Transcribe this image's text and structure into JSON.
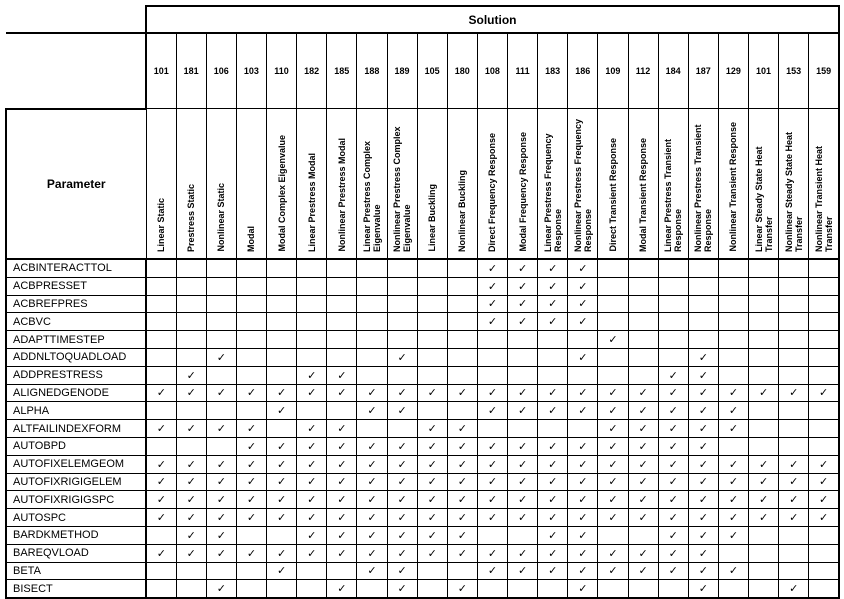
{
  "header": {
    "solution_label": "Solution",
    "parameter_label": "Parameter"
  },
  "solutions": [
    {
      "number": "101",
      "name": "Linear Static"
    },
    {
      "number": "181",
      "name": "Prestress Static"
    },
    {
      "number": "106",
      "name": "Nonlinear Static"
    },
    {
      "number": "103",
      "name": "Modal"
    },
    {
      "number": "110",
      "name": "Modal Complex Eigenvalue"
    },
    {
      "number": "182",
      "name": "Linear Prestress Modal"
    },
    {
      "number": "185",
      "name": "Nonlinear Prestress Modal"
    },
    {
      "number": "188",
      "name": "Linear Prestress Complex Eigenvalue"
    },
    {
      "number": "189",
      "name": "Nonlinear Prestress Complex Eigenvalue"
    },
    {
      "number": "105",
      "name": "Linear Buckling"
    },
    {
      "number": "180",
      "name": "Nonlinear Buckling"
    },
    {
      "number": "108",
      "name": "Direct Frequency Response"
    },
    {
      "number": "111",
      "name": "Modal Frequency Response"
    },
    {
      "number": "183",
      "name": "Linear Prestress Frequency Response"
    },
    {
      "number": "186",
      "name": "Nonlinear Prestress Frequency Response"
    },
    {
      "number": "109",
      "name": "Direct Transient Response"
    },
    {
      "number": "112",
      "name": "Modal Transient Response"
    },
    {
      "number": "184",
      "name": "Linear Prestress Transient Response"
    },
    {
      "number": "187",
      "name": "Nonlinear Prestress Transient Response"
    },
    {
      "number": "129",
      "name": "Nonlinear Transient Response"
    },
    {
      "number": "101",
      "name": "Linear Steady State Heat Transfer"
    },
    {
      "number": "153",
      "name": "Nonlinear Steady State Heat Transfer"
    },
    {
      "number": "159",
      "name": "Nonlinear Transient Heat Transfer"
    }
  ],
  "rows": [
    {
      "parameter": "ACBINTERACTTOL",
      "cells": [
        "",
        "",
        "",
        "",
        "",
        "",
        "",
        "",
        "",
        "",
        "",
        "✓",
        "✓",
        "✓",
        "✓",
        "",
        "",
        "",
        "",
        "",
        "",
        "",
        ""
      ]
    },
    {
      "parameter": "ACBPRESSET",
      "cells": [
        "",
        "",
        "",
        "",
        "",
        "",
        "",
        "",
        "",
        "",
        "",
        "✓",
        "✓",
        "✓",
        "✓",
        "",
        "",
        "",
        "",
        "",
        "",
        "",
        ""
      ]
    },
    {
      "parameter": "ACBREFPRES",
      "cells": [
        "",
        "",
        "",
        "",
        "",
        "",
        "",
        "",
        "",
        "",
        "",
        "✓",
        "✓",
        "✓",
        "✓",
        "",
        "",
        "",
        "",
        "",
        "",
        "",
        ""
      ]
    },
    {
      "parameter": "ACBVC",
      "cells": [
        "",
        "",
        "",
        "",
        "",
        "",
        "",
        "",
        "",
        "",
        "",
        "✓",
        "✓",
        "✓",
        "✓",
        "",
        "",
        "",
        "",
        "",
        "",
        "",
        ""
      ]
    },
    {
      "parameter": "ADAPTTIMESTEP",
      "cells": [
        "",
        "",
        "",
        "",
        "",
        "",
        "",
        "",
        "",
        "",
        "",
        "",
        "",
        "",
        "",
        "✓",
        "",
        "",
        "",
        "",
        "",
        "",
        ""
      ]
    },
    {
      "parameter": "ADDNLTOQUADLOAD",
      "cells": [
        "",
        "",
        "✓",
        "",
        "",
        "",
        "",
        "",
        "✓",
        "",
        "",
        "",
        "",
        "",
        "✓",
        "",
        "",
        "",
        "✓",
        "",
        "",
        "",
        ""
      ]
    },
    {
      "parameter": "ADDPRESTRESS",
      "cells": [
        "",
        "✓",
        "",
        "",
        "",
        "✓",
        "✓",
        "",
        "",
        "",
        "",
        "",
        "",
        "",
        "",
        "",
        "",
        "✓",
        "✓",
        "",
        "",
        "",
        ""
      ]
    },
    {
      "parameter": "ALIGNEDGENODE",
      "cells": [
        "✓",
        "✓",
        "✓",
        "✓",
        "✓",
        "✓",
        "✓",
        "✓",
        "✓",
        "✓",
        "✓",
        "✓",
        "✓",
        "✓",
        "✓",
        "✓",
        "✓",
        "✓",
        "✓",
        "✓",
        "✓",
        "✓",
        "✓"
      ]
    },
    {
      "parameter": "ALPHA",
      "cells": [
        "",
        "",
        "",
        "",
        "✓",
        "",
        "",
        "✓",
        "✓",
        "",
        "",
        "✓",
        "✓",
        "✓",
        "✓",
        "✓",
        "✓",
        "✓",
        "✓",
        "✓",
        "",
        "",
        ""
      ]
    },
    {
      "parameter": "ALTFAILINDEXFORM",
      "cells": [
        "✓",
        "✓",
        "✓",
        "✓",
        "",
        "✓",
        "✓",
        "",
        "",
        "✓",
        "✓",
        "",
        "",
        "",
        "",
        "✓",
        "✓",
        "✓",
        "✓",
        "✓",
        "",
        "",
        ""
      ]
    },
    {
      "parameter": "AUTOBPD",
      "cells": [
        "",
        "",
        "",
        "✓",
        "✓",
        "✓",
        "✓",
        "✓",
        "✓",
        "✓",
        "✓",
        "✓",
        "✓",
        "✓",
        "✓",
        "✓",
        "✓",
        "✓",
        "✓",
        "",
        "",
        "",
        ""
      ]
    },
    {
      "parameter": "AUTOFIXELEMGEOM",
      "cells": [
        "✓",
        "✓",
        "✓",
        "✓",
        "✓",
        "✓",
        "✓",
        "✓",
        "✓",
        "✓",
        "✓",
        "✓",
        "✓",
        "✓",
        "✓",
        "✓",
        "✓",
        "✓",
        "✓",
        "✓",
        "✓",
        "✓",
        "✓"
      ]
    },
    {
      "parameter": "AUTOFIXRIGIGELEM",
      "cells": [
        "✓",
        "✓",
        "✓",
        "✓",
        "✓",
        "✓",
        "✓",
        "✓",
        "✓",
        "✓",
        "✓",
        "✓",
        "✓",
        "✓",
        "✓",
        "✓",
        "✓",
        "✓",
        "✓",
        "✓",
        "✓",
        "✓",
        "✓"
      ]
    },
    {
      "parameter": "AUTOFIXRIGIGSPC",
      "cells": [
        "✓",
        "✓",
        "✓",
        "✓",
        "✓",
        "✓",
        "✓",
        "✓",
        "✓",
        "✓",
        "✓",
        "✓",
        "✓",
        "✓",
        "✓",
        "✓",
        "✓",
        "✓",
        "✓",
        "✓",
        "✓",
        "✓",
        "✓"
      ]
    },
    {
      "parameter": "AUTOSPC",
      "cells": [
        "✓",
        "✓",
        "✓",
        "✓",
        "✓",
        "✓",
        "✓",
        "✓",
        "✓",
        "✓",
        "✓",
        "✓",
        "✓",
        "✓",
        "✓",
        "✓",
        "✓",
        "✓",
        "✓",
        "✓",
        "✓",
        "✓",
        "✓"
      ]
    },
    {
      "parameter": "BARDKMETHOD",
      "cells": [
        "",
        "✓",
        "✓",
        "",
        "",
        "✓",
        "✓",
        "✓",
        "✓",
        "✓",
        "✓",
        "",
        "",
        "✓",
        "✓",
        "",
        "",
        "✓",
        "✓",
        "✓",
        "",
        "",
        ""
      ]
    },
    {
      "parameter": "BAREQVLOAD",
      "cells": [
        "✓",
        "✓",
        "✓",
        "✓",
        "✓",
        "✓",
        "✓",
        "✓",
        "✓",
        "✓",
        "✓",
        "✓",
        "✓",
        "✓",
        "✓",
        "✓",
        "✓",
        "✓",
        "✓",
        "",
        "",
        "",
        ""
      ]
    },
    {
      "parameter": "BETA",
      "cells": [
        "",
        "",
        "",
        "",
        "✓",
        "",
        "",
        "✓",
        "✓",
        "",
        "",
        "✓",
        "✓",
        "✓",
        "✓",
        "✓",
        "✓",
        "✓",
        "✓",
        "✓",
        "",
        "",
        ""
      ]
    },
    {
      "parameter": "BISECT",
      "cells": [
        "",
        "",
        "✓",
        "",
        "",
        "",
        "✓",
        "",
        "✓",
        "",
        "✓",
        "",
        "",
        "",
        "✓",
        "",
        "",
        "",
        "✓",
        "",
        "",
        "✓",
        ""
      ]
    }
  ]
}
